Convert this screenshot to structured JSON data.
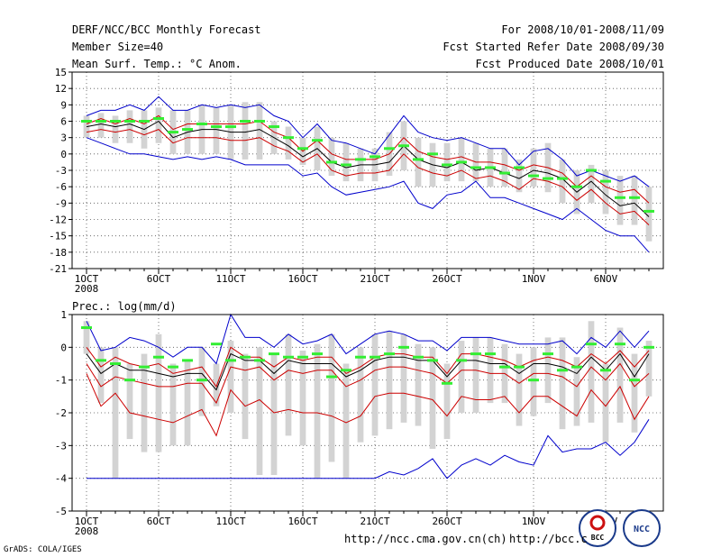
{
  "header": {
    "title": "DERF/NCC/BCC Monthly Forecast",
    "member_size": "Member Size=40",
    "variable": "Mean Surf. Temp.: °C Anom.",
    "period": "For 2008/10/01-2008/11/09",
    "started": "Fcst Started Refer Date 2008/09/30",
    "produced": "Fcst Produced Date 2008/10/01"
  },
  "footer": {
    "grads": "GrADS: COLA/IGES",
    "url1": "http://ncc.cma.gov.cn(ch)",
    "url2": "http://bcc.c",
    "logo_bcc": "BCC",
    "logo_ncc": "NCC"
  },
  "colors": {
    "envelope": "#0000cc",
    "spread": "#cc0000",
    "mean": "#000000",
    "bar": "#d3d3d3",
    "marker": "#33ee33",
    "grid": "#555555"
  },
  "chart_data": [
    {
      "type": "line",
      "title": "Mean Surf. Temp.: °C Anom.",
      "ylim": [
        -21,
        15
      ],
      "yticks": [
        15,
        12,
        9,
        6,
        3,
        0,
        -3,
        -6,
        -9,
        -12,
        -15,
        -18,
        -21
      ],
      "x": [
        1,
        2,
        3,
        4,
        5,
        6,
        7,
        8,
        9,
        10,
        11,
        12,
        13,
        14,
        15,
        16,
        17,
        18,
        19,
        20,
        21,
        22,
        23,
        24,
        25,
        26,
        27,
        28,
        29,
        30,
        31,
        32,
        33,
        34,
        35,
        36,
        37,
        38,
        39,
        40
      ],
      "xticks": [
        {
          "day": 1,
          "label": "1OCT",
          "sub": "2008"
        },
        {
          "day": 6,
          "label": "6OCT"
        },
        {
          "day": 11,
          "label": "11OCT"
        },
        {
          "day": 16,
          "label": "16OCT"
        },
        {
          "day": 21,
          "label": "21OCT"
        },
        {
          "day": 26,
          "label": "26OCT"
        },
        {
          "day": 32,
          "label": "1NOV"
        },
        {
          "day": 37,
          "label": "6NOV"
        }
      ],
      "series": [
        {
          "name": "max",
          "values": [
            7,
            8,
            8,
            9,
            8,
            10.5,
            8,
            8,
            9,
            8.5,
            9,
            8.5,
            9,
            7,
            6,
            3,
            5.5,
            2.5,
            2,
            1,
            0,
            3.5,
            7,
            4,
            3,
            2.5,
            3,
            2,
            1,
            1,
            -2,
            0.5,
            1,
            -1,
            -4,
            -3,
            -4,
            -5,
            -4,
            -6
          ]
        },
        {
          "name": "upper",
          "values": [
            5.5,
            6.5,
            5.5,
            6.5,
            5.5,
            7,
            4.5,
            5.5,
            5.5,
            5.5,
            5.5,
            5.5,
            6,
            4,
            3,
            0.5,
            2.5,
            0,
            -1,
            -1,
            -1,
            0,
            3,
            0.5,
            -0.5,
            -1,
            -0.5,
            -1.5,
            -1.5,
            -2,
            -3,
            -2,
            -2.5,
            -3.5,
            -6,
            -4,
            -6,
            -7,
            -6.5,
            -9
          ]
        },
        {
          "name": "mean",
          "values": [
            5,
            5.5,
            5,
            5.5,
            4.5,
            6,
            3,
            4,
            4.5,
            4.5,
            4,
            4,
            4.5,
            3,
            1.5,
            -0.5,
            1,
            -1.5,
            -2.5,
            -2,
            -2,
            -1.5,
            1.5,
            -1,
            -2,
            -2.5,
            -1.5,
            -3,
            -2.5,
            -3.5,
            -4.5,
            -3,
            -3.5,
            -4.5,
            -7,
            -5,
            -7.5,
            -9.5,
            -9,
            -11.5
          ]
        },
        {
          "name": "lower",
          "values": [
            4,
            4.5,
            4,
            4.5,
            3.5,
            4.5,
            2,
            3,
            3,
            3,
            2.5,
            2.5,
            3,
            1.5,
            0.5,
            -1.5,
            0,
            -3,
            -4,
            -3.5,
            -3.5,
            -3,
            0,
            -2.5,
            -3.5,
            -4,
            -3,
            -4.5,
            -4,
            -5,
            -6.5,
            -4.5,
            -5,
            -6,
            -8.5,
            -6.5,
            -9,
            -11,
            -10.5,
            -13
          ]
        },
        {
          "name": "min",
          "values": [
            3,
            2,
            1,
            0,
            0,
            -0.5,
            -1,
            -0.5,
            -1,
            -0.5,
            -1,
            -2,
            -2,
            -2,
            -2,
            -4,
            -3.5,
            -6,
            -7.5,
            -7,
            -6.5,
            -6,
            -5,
            -9,
            -10,
            -7.5,
            -7,
            -5,
            -8,
            -8,
            -9,
            -10,
            -11,
            -12,
            -10,
            -12,
            -14,
            -15,
            -15,
            -18
          ]
        },
        {
          "name": "spread_bar_top",
          "values": [
            7,
            7.5,
            7,
            8,
            8,
            8.5,
            8,
            8,
            9,
            8.5,
            9,
            9.5,
            9.5,
            6,
            5,
            3,
            5,
            3,
            2,
            1,
            1,
            4,
            6,
            3,
            2,
            2,
            3,
            2,
            1,
            1,
            -1,
            1,
            2,
            -1,
            -3,
            -2,
            -3,
            -4,
            -4,
            -6
          ]
        },
        {
          "name": "spread_bar_bottom",
          "values": [
            3,
            3,
            2,
            2,
            1,
            2,
            0,
            0,
            0,
            0,
            -1,
            -1,
            -1,
            0,
            -1,
            -2,
            -3,
            -4,
            -5,
            -5,
            -5,
            -4,
            -3,
            -6,
            -6,
            -5,
            -5,
            -5,
            -6,
            -6,
            -7,
            -6,
            -7,
            -9,
            -11,
            -9,
            -11,
            -13,
            -13,
            -16
          ]
        },
        {
          "name": "marker",
          "values": [
            6,
            6,
            6,
            6,
            6,
            6.5,
            4,
            4.5,
            5.5,
            5,
            5,
            6,
            6,
            5,
            3,
            1,
            2.5,
            -1.5,
            -2,
            -1,
            -0.5,
            1,
            1.5,
            -1,
            0,
            -2,
            -1.5,
            -2.5,
            -2.5,
            -3.5,
            -2.5,
            -4,
            -4.5,
            -4.5,
            -6,
            -3,
            -5,
            -8,
            -8,
            -10.5
          ]
        }
      ]
    },
    {
      "type": "line",
      "title": "Prec.: log(mm/d)",
      "ylim": [
        -5,
        1
      ],
      "yticks": [
        1,
        0,
        -1,
        -2,
        -3,
        -4,
        -5
      ],
      "x": [
        1,
        2,
        3,
        4,
        5,
        6,
        7,
        8,
        9,
        10,
        11,
        12,
        13,
        14,
        15,
        16,
        17,
        18,
        19,
        20,
        21,
        22,
        23,
        24,
        25,
        26,
        27,
        28,
        29,
        30,
        31,
        32,
        33,
        34,
        35,
        36,
        37,
        38,
        39,
        40
      ],
      "xticks": [
        {
          "day": 1,
          "label": "1OCT",
          "sub": "2008"
        },
        {
          "day": 6,
          "label": "6OCT"
        },
        {
          "day": 11,
          "label": "11OCT"
        },
        {
          "day": 16,
          "label": "16OCT"
        },
        {
          "day": 21,
          "label": "21OCT"
        },
        {
          "day": 26,
          "label": "26OCT"
        },
        {
          "day": 32,
          "label": "1NOV"
        },
        {
          "day": 37,
          "label": "6NOV"
        }
      ],
      "series": [
        {
          "name": "max",
          "values": [
            0.8,
            -0.1,
            0,
            0.3,
            0.2,
            0,
            -0.3,
            0,
            0,
            -0.5,
            1,
            0.3,
            0.3,
            0,
            0.4,
            0.1,
            0.2,
            0.4,
            -0.2,
            0.1,
            0.4,
            0.5,
            0.4,
            0.2,
            0.2,
            -0.1,
            0.3,
            0.3,
            0.3,
            0.2,
            0.1,
            0.1,
            0.1,
            0.2,
            -0.2,
            0.3,
            0,
            0.5,
            0,
            0.5
          ]
        },
        {
          "name": "upper",
          "values": [
            0,
            -0.6,
            -0.3,
            -0.5,
            -0.6,
            -0.5,
            -0.8,
            -0.7,
            -0.6,
            -1.2,
            0,
            -0.3,
            -0.3,
            -0.6,
            -0.3,
            -0.4,
            -0.3,
            -0.3,
            -0.8,
            -0.6,
            -0.3,
            -0.2,
            -0.2,
            -0.3,
            -0.3,
            -0.8,
            -0.2,
            -0.2,
            -0.3,
            -0.4,
            -0.6,
            -0.4,
            -0.3,
            -0.4,
            -0.6,
            -0.2,
            -0.5,
            -0.1,
            -0.6,
            -0.1
          ]
        },
        {
          "name": "mean",
          "values": [
            -0.2,
            -0.8,
            -0.5,
            -0.7,
            -0.7,
            -0.8,
            -0.9,
            -0.8,
            -0.8,
            -1.3,
            -0.2,
            -0.4,
            -0.4,
            -0.8,
            -0.4,
            -0.5,
            -0.5,
            -0.5,
            -0.9,
            -0.7,
            -0.4,
            -0.3,
            -0.3,
            -0.4,
            -0.4,
            -0.9,
            -0.4,
            -0.4,
            -0.5,
            -0.5,
            -0.8,
            -0.5,
            -0.5,
            -0.6,
            -0.8,
            -0.3,
            -0.7,
            -0.2,
            -0.9,
            -0.2
          ]
        },
        {
          "name": "lower",
          "values": [
            -0.5,
            -1.2,
            -0.9,
            -1,
            -1.1,
            -1.2,
            -1.2,
            -1.1,
            -1.1,
            -1.7,
            -0.6,
            -0.7,
            -0.6,
            -1,
            -0.7,
            -0.8,
            -0.7,
            -0.7,
            -1.2,
            -1,
            -0.7,
            -0.6,
            -0.6,
            -0.7,
            -0.8,
            -1.1,
            -0.7,
            -0.7,
            -0.8,
            -0.8,
            -1.1,
            -0.8,
            -0.8,
            -0.9,
            -1.2,
            -0.6,
            -1,
            -0.5,
            -1.2,
            -0.8
          ]
        },
        {
          "name": "min_spread",
          "values": [
            -0.8,
            -1.8,
            -1.4,
            -2,
            -2.1,
            -2.2,
            -2.3,
            -2.1,
            -1.9,
            -2.7,
            -1.3,
            -1.8,
            -1.6,
            -2,
            -1.9,
            -2,
            -2,
            -2.1,
            -2.3,
            -2.1,
            -1.5,
            -1.4,
            -1.4,
            -1.5,
            -1.6,
            -2.1,
            -1.5,
            -1.6,
            -1.6,
            -1.5,
            -2,
            -1.5,
            -1.5,
            -1.8,
            -2.1,
            -1.3,
            -1.8,
            -1.2,
            -2.2,
            -1.5
          ]
        },
        {
          "name": "min",
          "values": [
            -4,
            -4,
            -4,
            -4,
            -4,
            -4,
            -4,
            -4,
            -4,
            -4,
            -4,
            -4,
            -4,
            -4,
            -4,
            -4,
            -4,
            -4,
            -4,
            -4,
            -4,
            -3.8,
            -3.9,
            -3.7,
            -3.4,
            -4,
            -3.6,
            -3.4,
            -3.6,
            -3.3,
            -3.5,
            -3.6,
            -2.7,
            -3.2,
            -3.1,
            -3.1,
            -2.9,
            -3.3,
            -2.9,
            -2.2
          ]
        },
        {
          "name": "spread_bar_top",
          "values": [
            0.8,
            0,
            0,
            -0.5,
            -0.2,
            0.4,
            -0.5,
            -0.4,
            0,
            -0.5,
            0.2,
            -0.2,
            0,
            -0.2,
            0.4,
            -0.1,
            0.1,
            0.4,
            -0.5,
            0,
            0.4,
            0.5,
            0.4,
            0.1,
            0,
            -0.5,
            0.2,
            0.3,
            0.3,
            0.1,
            -0.2,
            0,
            0.3,
            0.3,
            -0.3,
            0.8,
            -0.5,
            0.6,
            -0.2,
            0.2
          ]
        },
        {
          "name": "spread_bar_bottom",
          "values": [
            -0.2,
            -1.7,
            -4,
            -2.8,
            -3.2,
            -3.2,
            -3,
            -3,
            -2.1,
            -1.8,
            -2,
            -2.8,
            -3.9,
            -3.9,
            -2.7,
            -3,
            -4,
            -3.5,
            -4,
            -2.9,
            -2.7,
            -2.5,
            -2.3,
            -2.4,
            -3.1,
            -2.8,
            -2,
            -2,
            -1.7,
            -1.7,
            -2.4,
            -2.1,
            -1.7,
            -2.5,
            -2.4,
            -2.3,
            -2.9,
            -2.3,
            -2.6,
            -1.5
          ]
        },
        {
          "name": "marker",
          "values": [
            0.6,
            -0.4,
            -0.5,
            -1,
            -0.6,
            -0.3,
            -0.6,
            -0.4,
            -1,
            0.1,
            -0.4,
            -0.3,
            -0.4,
            -0.2,
            -0.3,
            -0.3,
            -0.2,
            -0.9,
            -0.7,
            -0.3,
            -0.3,
            -0.2,
            0,
            -0.3,
            -0.4,
            -1.1,
            -0.4,
            -0.2,
            -0.2,
            -0.6,
            -0.6,
            -1,
            -0.2,
            -0.7,
            -0.6,
            0.1,
            -0.7,
            0.1,
            -1,
            0
          ]
        }
      ]
    }
  ]
}
